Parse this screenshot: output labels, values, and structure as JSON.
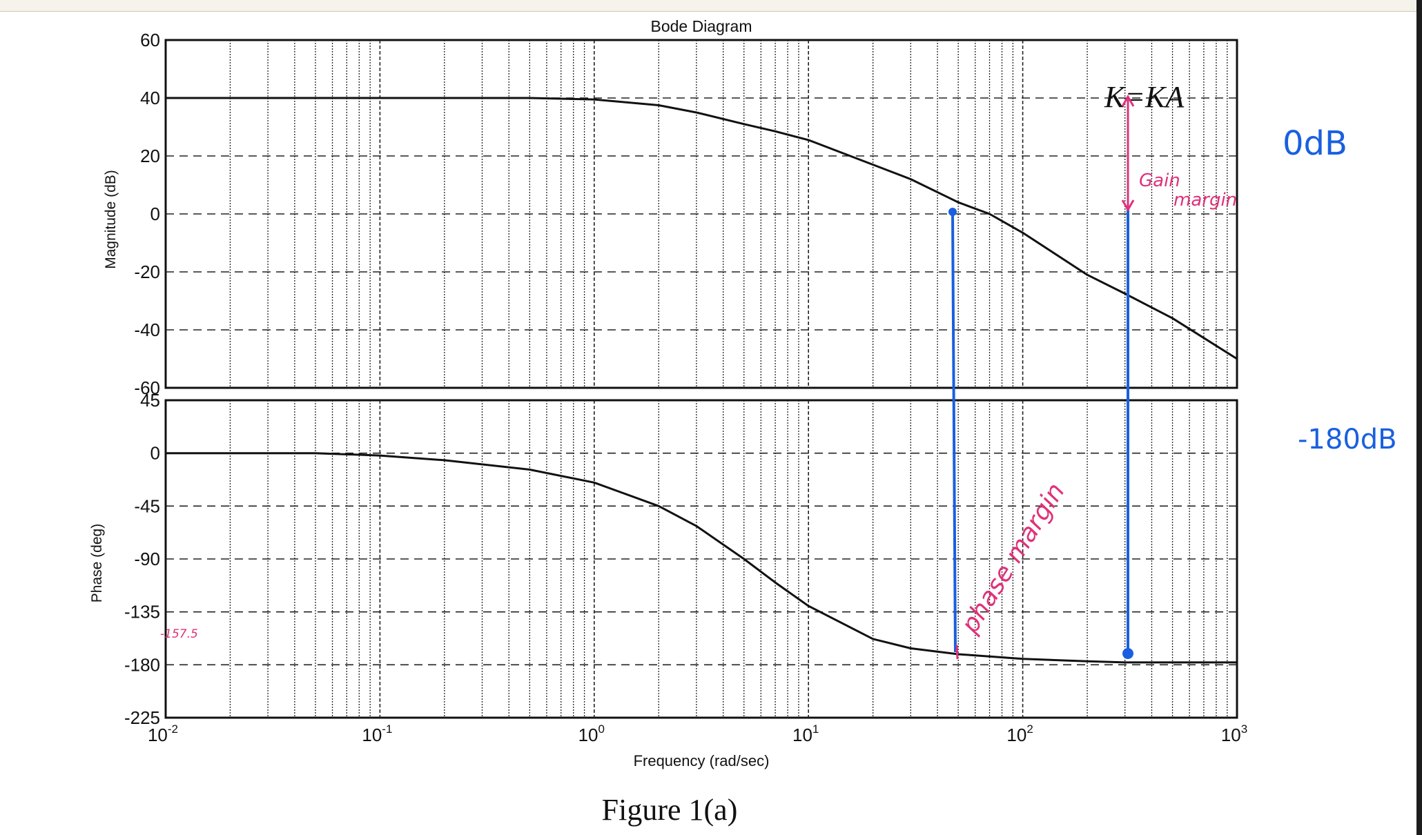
{
  "chart_data": [
    {
      "type": "line",
      "title": "Bode Diagram",
      "ylabel": "Magnitude (dB)",
      "xlabel": "Frequency (rad/sec)",
      "xscale": "log",
      "xlim": [
        0.01,
        1000
      ],
      "ylim": [
        -60,
        60
      ],
      "yticks": [
        60,
        40,
        20,
        0,
        -20,
        -40,
        -60
      ],
      "xtick_labels": [
        "10-2",
        "10-1",
        "100",
        "101",
        "102",
        "103"
      ],
      "grid": true,
      "series": [
        {
          "x": [
            0.01,
            0.1,
            0.5,
            1,
            2,
            3,
            5,
            7,
            10,
            20,
            30,
            50,
            70,
            100,
            200,
            300,
            500,
            1000
          ],
          "y": [
            40,
            40,
            40,
            39.5,
            37.5,
            35,
            31,
            28.5,
            25.5,
            17,
            12,
            4,
            0,
            -6.5,
            -21,
            -27.5,
            -36,
            -50
          ]
        }
      ],
      "annotation": "K=KA"
    },
    {
      "type": "line",
      "ylabel": "Phase (deg)",
      "xlabel": "Frequency (rad/sec)",
      "xscale": "log",
      "xlim": [
        0.01,
        1000
      ],
      "ylim": [
        -225,
        45
      ],
      "yticks": [
        45,
        0,
        -45,
        -90,
        -135,
        -180,
        -225
      ],
      "grid": true,
      "series": [
        {
          "x": [
            0.01,
            0.05,
            0.1,
            0.2,
            0.5,
            1,
            2,
            3,
            5,
            7,
            10,
            20,
            30,
            50,
            100,
            200,
            300,
            500,
            1000
          ],
          "y": [
            0,
            0,
            -2,
            -6,
            -14,
            -25,
            -45,
            -62,
            -90,
            -110,
            -130,
            -158,
            -166,
            -171,
            -175,
            -177,
            -178,
            -178,
            -178
          ]
        }
      ]
    }
  ],
  "figure_caption": "Figure 1(a)",
  "annotations": {
    "gain_margin_line1": "Gain",
    "gain_margin_line2": "margin",
    "phase_margin": "phase margin",
    "phase_note": "-157.5",
    "right_top": "0dB",
    "right_bottom": "-180dB"
  },
  "colors": {
    "curve": "#111111",
    "grid": "#222222",
    "blue": "#1a5fe0",
    "pink": "#e0317a"
  }
}
